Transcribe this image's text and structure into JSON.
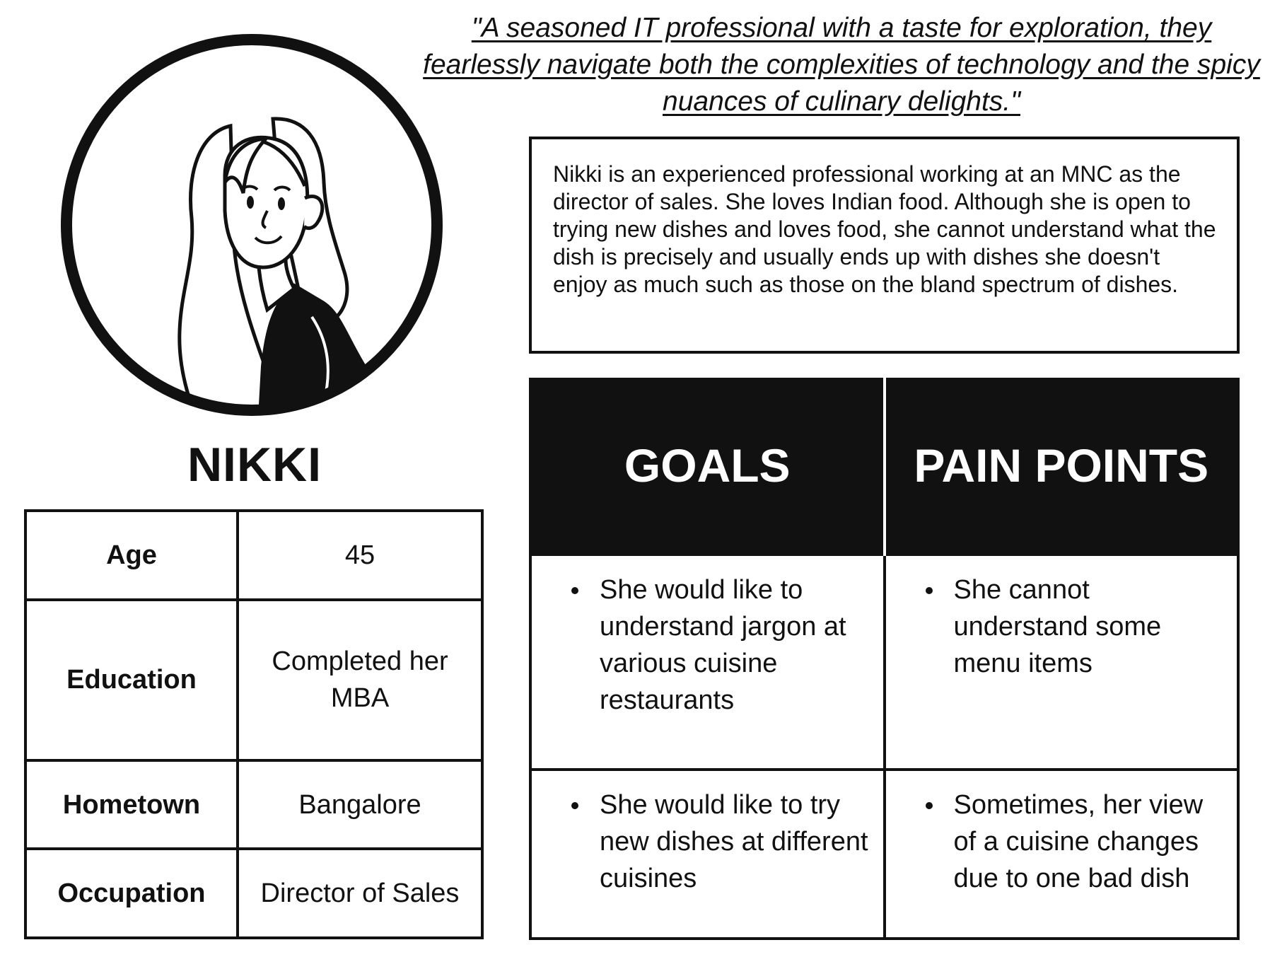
{
  "quote": "\"A seasoned IT professional with a taste for exploration, they fearlessly navigate both the complexities of technology and the spicy nuances of culinary delights.\"",
  "persona": {
    "name": "NIKKI",
    "avatar_icon": "woman-avatar-icon"
  },
  "bio": "Nikki is an experienced professional working at an MNC as the director of sales. She loves Indian food. Although she is open to trying new dishes and loves food, she cannot understand what the dish is precisely and usually ends up with dishes she doesn't enjoy as much such as those on the bland spectrum of dishes.",
  "info": [
    {
      "label": "Age",
      "value": "45"
    },
    {
      "label": "Education",
      "value": "Completed her MBA"
    },
    {
      "label": "Hometown",
      "value": "Bangalore"
    },
    {
      "label": "Occupation",
      "value": "Director of Sales"
    }
  ],
  "goals_header": "GOALS",
  "pain_header": "PAIN POINTS",
  "rows": [
    {
      "goal": "She would like to understand jargon at various cuisine restaurants",
      "pain": "She cannot understand some menu items"
    },
    {
      "goal": "She would like to try new dishes at different cuisines",
      "pain": "Sometimes, her view of a cuisine changes due to one bad dish"
    }
  ],
  "colors": {
    "ink": "#111111",
    "background": "#ffffff"
  }
}
